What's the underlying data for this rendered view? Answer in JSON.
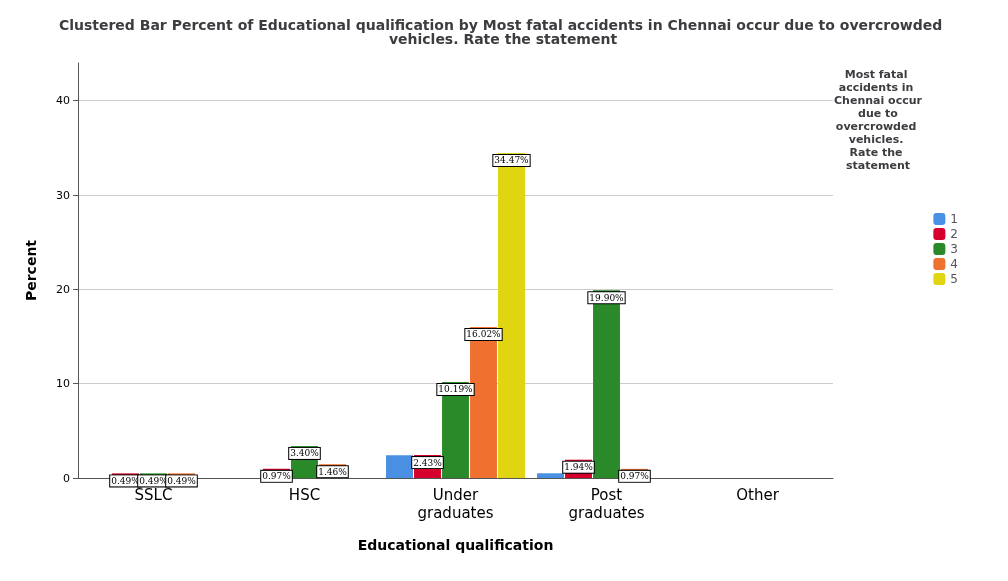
{
  "chart_data": {
    "type": "bar",
    "title": "Clustered Bar Percent of Educational qualification by Most fatal accidents in Chennai occur due to overcrowded vehicles. Rate the statement",
    "xlabel": "Educational qualification",
    "ylabel": "Percent",
    "legend_title": "Most fatal accidents in Chennai occur due to overcrowded vehicles. Rate the statement",
    "categories": [
      "SSLC",
      "HSC",
      "Under graduates",
      "Post graduates",
      "Other"
    ],
    "series": [
      {
        "name": "1",
        "color": "#4a90e2",
        "values": [
          null,
          null,
          2.4,
          0.5,
          null
        ],
        "value_labels": [
          null,
          null,
          null,
          null,
          null
        ]
      },
      {
        "name": "2",
        "color": "#d5002c",
        "values": [
          0.49,
          0.97,
          2.43,
          1.94,
          null
        ],
        "value_labels": [
          "0.49%",
          "0.97%",
          "2.43%",
          "1.94%",
          null
        ]
      },
      {
        "name": "3",
        "color": "#2a8a2a",
        "values": [
          0.49,
          3.4,
          10.19,
          19.9,
          null
        ],
        "value_labels": [
          "0.49%",
          "3.40%",
          "10.19%",
          "19.90%",
          null
        ]
      },
      {
        "name": "4",
        "color": "#f07030",
        "values": [
          0.49,
          1.46,
          16.02,
          0.97,
          null
        ],
        "value_labels": [
          "0.49%",
          "1.46%",
          "16.02%",
          "0.97%",
          null
        ]
      },
      {
        "name": "5",
        "color": "#e0d510",
        "values": [
          null,
          null,
          34.47,
          null,
          null
        ],
        "value_labels": [
          null,
          null,
          "34.47%",
          null,
          null
        ]
      }
    ],
    "ylim": [
      0,
      44
    ],
    "yticks": [
      0,
      10,
      20,
      30,
      40
    ],
    "grid": "y",
    "legend": "right"
  }
}
